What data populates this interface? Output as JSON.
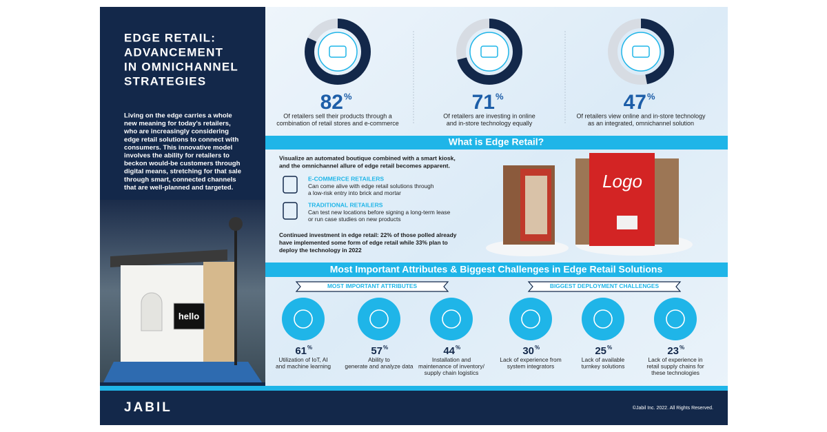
{
  "sidebar": {
    "title": [
      "EDGE RETAIL:",
      "ADVANCEMENT",
      "IN OMNICHANNEL",
      "STRATEGIES"
    ],
    "body": [
      "Living on the edge carries a whole",
      "new meaning for today's retailers,",
      "who are increasingly considering",
      "edge retail solutions to connect with",
      "consumers. This innovative model",
      "involves the ability for retailers to",
      "beckon would-be customers through",
      "digital means, stretching for that sale",
      "through smart, connected channels",
      "that are well-planned and targeted."
    ],
    "screen": "hello"
  },
  "stats": [
    {
      "value": 82,
      "unit": "%",
      "text": [
        "Of retailers sell their products through a",
        "combination of retail stores and e-commerce"
      ]
    },
    {
      "value": 71,
      "unit": "%",
      "text": [
        "Of retailers are investing in online",
        "and in-store technology equally"
      ]
    },
    {
      "value": 47,
      "unit": "%",
      "text": [
        "Of retailers view online and in-store technology",
        "as an integrated, omnichannel solution"
      ]
    }
  ],
  "section1": {
    "heading": "What is Edge Retail?",
    "intro": [
      "Visualize an automated boutique combined with a smart kiosk,",
      "and the omnichannel allure of edge retail becomes apparent."
    ],
    "items": [
      {
        "title": "E-COMMERCE RETAILERS",
        "text": [
          "Can come alive with edge retail solutions through",
          "a low-risk entry into brick and mortar"
        ]
      },
      {
        "title": "TRADITIONAL RETAILERS",
        "text": [
          "Can test new locations before signing a long-term lease",
          "or run case studies on new products"
        ]
      }
    ],
    "closing": [
      "Continued investment in edge retail: 22% of those polled already",
      "have implemented some form of edge retail while 33% plan to",
      "deploy the technology in 2022"
    ],
    "kiosk_logo": "Logo"
  },
  "section2": {
    "heading": "Most Important Attributes & Biggest Challenges in Edge Retail Solutions",
    "groups": [
      {
        "title": "MOST IMPORTANT ATTRIBUTES",
        "items": [
          {
            "value": 61,
            "unit": "%",
            "text": [
              "Utilization of IoT, AI",
              "and machine learning"
            ]
          },
          {
            "value": 57,
            "unit": "%",
            "text": [
              "Ability to",
              "generate and analyze data"
            ]
          },
          {
            "value": 44,
            "unit": "%",
            "text": [
              "Installation and",
              "maintenance of inventory/",
              "supply chain logistics"
            ]
          }
        ]
      },
      {
        "title": "BIGGEST DEPLOYMENT CHALLENGES",
        "items": [
          {
            "value": 30,
            "unit": "%",
            "text": [
              "Lack of experience from",
              "system integrators"
            ]
          },
          {
            "value": 25,
            "unit": "%",
            "text": [
              "Lack of available",
              "turnkey solutions"
            ]
          },
          {
            "value": 23,
            "unit": "%",
            "text": [
              "Lack of experience in",
              "retail supply chains for",
              "these technologies"
            ]
          }
        ]
      }
    ]
  },
  "footer": {
    "brand": "JABIL",
    "copyright": "©Jabil Inc. 2022. All Rights Reserved."
  }
}
